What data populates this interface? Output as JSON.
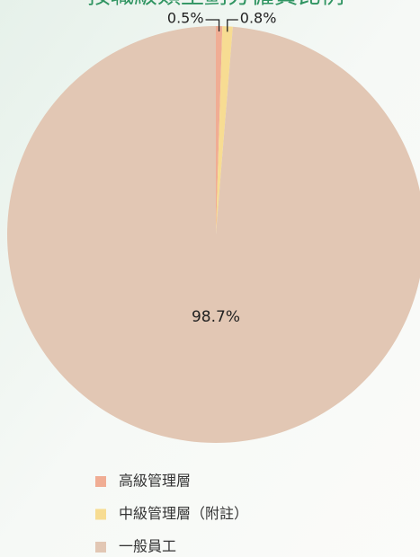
{
  "chart_data": {
    "type": "pie",
    "title": "按職級類型劃分僱員比例",
    "categories": [
      "高級管理層",
      "中級管理層（附註）",
      "一般員工"
    ],
    "values": [
      0.5,
      0.8,
      98.7
    ],
    "value_labels": [
      "0.5%",
      "0.8%",
      "98.7%"
    ],
    "colors": [
      "#f0ad94",
      "#f7dc92",
      "#e2c7b4"
    ]
  }
}
